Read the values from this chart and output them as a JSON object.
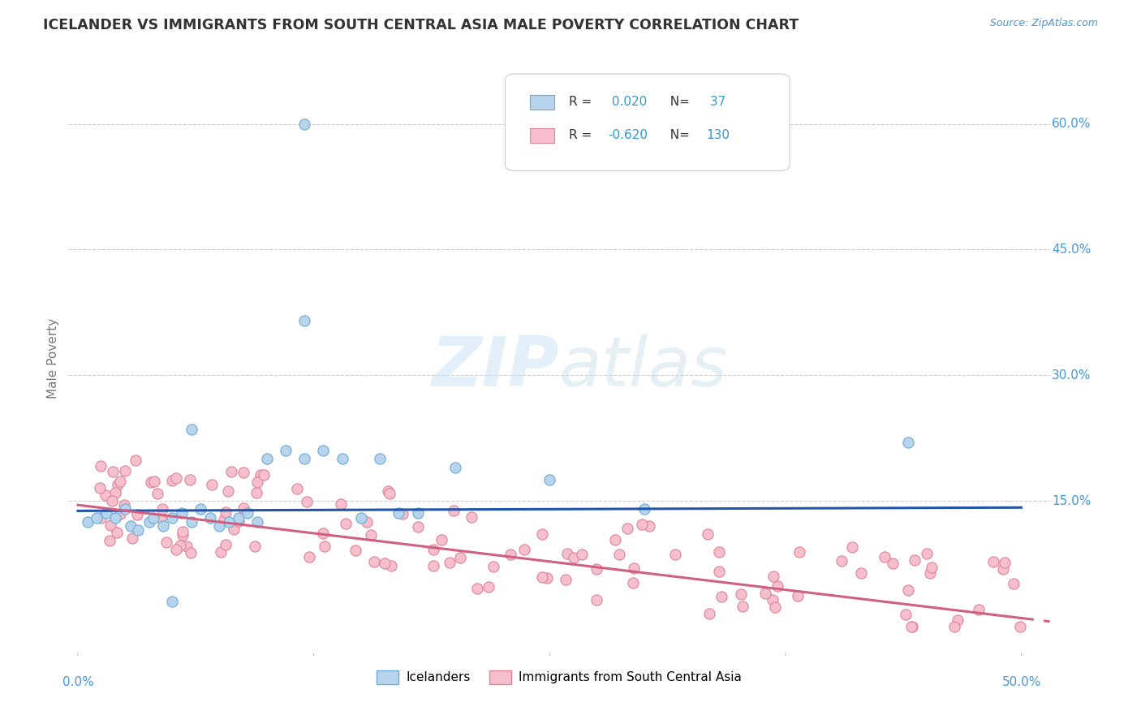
{
  "title": "ICELANDER VS IMMIGRANTS FROM SOUTH CENTRAL ASIA MALE POVERTY CORRELATION CHART",
  "source": "Source: ZipAtlas.com",
  "ylabel": "Male Poverty",
  "ytick_labels": [
    "60.0%",
    "45.0%",
    "30.0%",
    "15.0%"
  ],
  "ytick_values": [
    0.6,
    0.45,
    0.3,
    0.15
  ],
  "xlim": [
    -0.005,
    0.515
  ],
  "ylim": [
    -0.03,
    0.67
  ],
  "group1_color": "#b8d4ed",
  "group1_edge_color": "#6aaad4",
  "group2_color": "#f5c0cc",
  "group2_edge_color": "#e0819a",
  "line1_color": "#2255aa",
  "line2_color": "#d06080",
  "r1": 0.02,
  "n1": 37,
  "r2": -0.62,
  "n2": 130,
  "legend1_label": "Icelanders",
  "legend2_label": "Immigrants from South Central Asia",
  "watermark_zip": "ZIP",
  "watermark_atlas": "atlas",
  "background_color": "#ffffff",
  "grid_color": "#cccccc",
  "title_color": "#333333",
  "axis_label_color": "#777777",
  "tick_label_color": "#4499dd",
  "stat_color": "#3399cc"
}
